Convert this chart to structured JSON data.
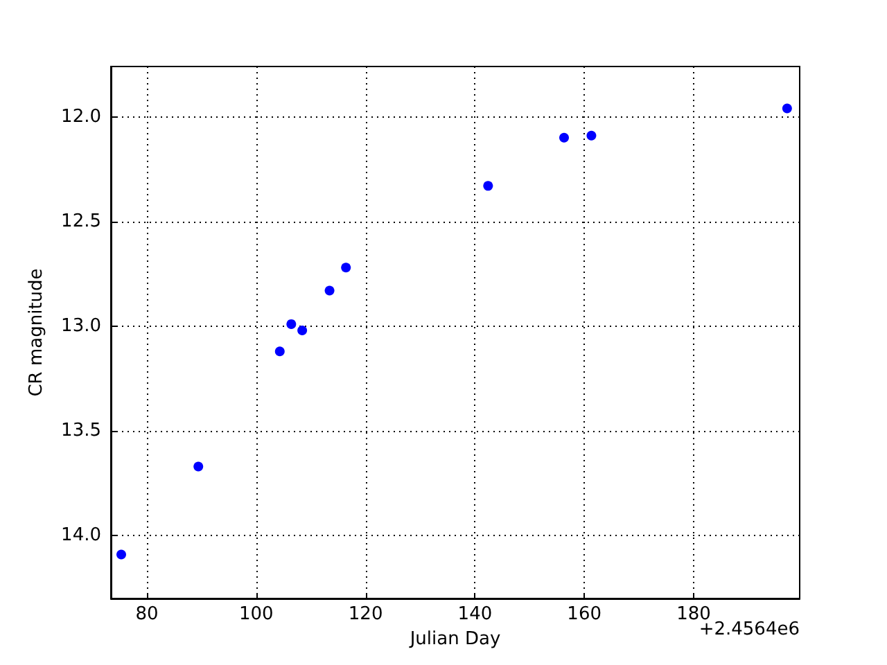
{
  "chart_data": {
    "type": "scatter",
    "xlabel": "Julian Day",
    "ylabel": "CR magnitude",
    "annotations": [
      "+2.4564e6"
    ],
    "x": [
      75.3,
      89.4,
      104.3,
      106.4,
      108.4,
      113.4,
      116.4,
      142.4,
      156.3,
      161.3,
      197.1
    ],
    "series": [
      {
        "color": "#0000ff",
        "values": [
          14.09,
          13.67,
          13.12,
          12.99,
          13.02,
          12.83,
          12.72,
          12.33,
          12.1,
          12.09,
          11.96
        ]
      }
    ],
    "xlim": [
      73.4,
      199.4
    ],
    "xticks": [
      80,
      100,
      120,
      140,
      160,
      180
    ],
    "ylim": [
      14.3,
      11.76
    ],
    "yticks": [
      {
        "value": 12,
        "label": "12.0"
      },
      {
        "value": 12.5,
        "label": "12.5"
      },
      {
        "value": 13,
        "label": "13.0"
      },
      {
        "value": 13.5,
        "label": "13.5"
      },
      {
        "value": 14,
        "label": "14.0"
      }
    ],
    "grid": true,
    "marker": "circle"
  }
}
